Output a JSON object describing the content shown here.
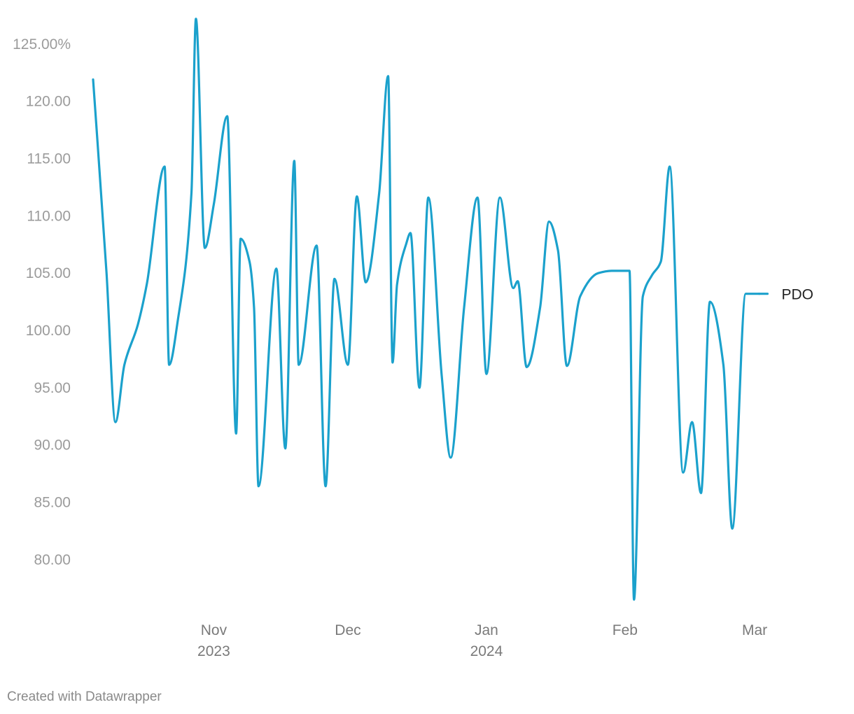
{
  "chart_data": {
    "type": "line",
    "title": "",
    "xlabel": "",
    "ylabel": "",
    "ylim": [
      75.5,
      127.5
    ],
    "xlim": [
      "2023-10-05",
      "2024-03-06"
    ],
    "grid": false,
    "legend": "inline-right",
    "y_ticks": [
      {
        "value": 125,
        "label": "125.00%"
      },
      {
        "value": 120,
        "label": "120.00"
      },
      {
        "value": 115,
        "label": "115.00"
      },
      {
        "value": 110,
        "label": "110.00"
      },
      {
        "value": 105,
        "label": "105.00"
      },
      {
        "value": 100,
        "label": "100.00"
      },
      {
        "value": 95,
        "label": "95.00"
      },
      {
        "value": 90,
        "label": "90.00"
      },
      {
        "value": 85,
        "label": "85.00"
      },
      {
        "value": 80,
        "label": "80.00"
      }
    ],
    "x_ticks": [
      {
        "date": "2023-11-01",
        "label": "Nov",
        "sublabel": "2023"
      },
      {
        "date": "2023-12-01",
        "label": "Dec",
        "sublabel": ""
      },
      {
        "date": "2024-01-01",
        "label": "Jan",
        "sublabel": "2024"
      },
      {
        "date": "2024-02-01",
        "label": "Feb",
        "sublabel": ""
      },
      {
        "date": "2024-03-01",
        "label": "Mar",
        "sublabel": ""
      }
    ],
    "series": [
      {
        "name": "PDO",
        "color": "#1ba1cc",
        "points": [
          [
            "2023-10-05",
            121.9
          ],
          [
            "2023-10-08",
            105.0
          ],
          [
            "2023-10-10",
            92.0
          ],
          [
            "2023-10-12",
            97.0
          ],
          [
            "2023-10-15",
            100.5
          ],
          [
            "2023-10-17",
            104.0
          ],
          [
            "2023-10-21",
            114.3
          ],
          [
            "2023-10-22",
            97.0
          ],
          [
            "2023-10-24",
            101.0
          ],
          [
            "2023-10-27",
            112.0
          ],
          [
            "2023-10-28",
            127.2
          ],
          [
            "2023-10-30",
            107.2
          ],
          [
            "2023-11-01",
            111.0
          ],
          [
            "2023-11-04",
            118.7
          ],
          [
            "2023-11-06",
            91.0
          ],
          [
            "2023-11-07",
            108.0
          ],
          [
            "2023-11-09",
            106.0
          ],
          [
            "2023-11-10",
            102.0
          ],
          [
            "2023-11-11",
            86.4
          ],
          [
            "2023-11-15",
            105.4
          ],
          [
            "2023-11-17",
            89.7
          ],
          [
            "2023-11-19",
            114.8
          ],
          [
            "2023-11-20",
            97.0
          ],
          [
            "2023-11-24",
            107.4
          ],
          [
            "2023-11-26",
            86.4
          ],
          [
            "2023-11-28",
            104.5
          ],
          [
            "2023-12-01",
            97.0
          ],
          [
            "2023-12-03",
            111.7
          ],
          [
            "2023-12-05",
            104.2
          ],
          [
            "2023-12-08",
            112.0
          ],
          [
            "2023-12-10",
            122.2
          ],
          [
            "2023-12-11",
            97.2
          ],
          [
            "2023-12-12",
            104.0
          ],
          [
            "2023-12-14",
            107.5
          ],
          [
            "2023-12-15",
            108.5
          ],
          [
            "2023-12-17",
            95.0
          ],
          [
            "2023-12-19",
            111.6
          ],
          [
            "2023-12-22",
            96.0
          ],
          [
            "2023-12-24",
            88.9
          ],
          [
            "2023-12-27",
            102.0
          ],
          [
            "2023-12-30",
            111.6
          ],
          [
            "2024-01-01",
            96.2
          ],
          [
            "2024-01-04",
            111.6
          ],
          [
            "2024-01-07",
            103.7
          ],
          [
            "2024-01-08",
            104.3
          ],
          [
            "2024-01-10",
            96.8
          ],
          [
            "2024-01-13",
            102.0
          ],
          [
            "2024-01-15",
            109.5
          ],
          [
            "2024-01-17",
            107.0
          ],
          [
            "2024-01-19",
            96.9
          ],
          [
            "2024-01-22",
            103.0
          ],
          [
            "2024-01-26",
            105.0
          ],
          [
            "2024-01-29",
            105.2
          ],
          [
            "2024-02-02",
            105.2
          ],
          [
            "2024-02-03",
            76.5
          ],
          [
            "2024-02-05",
            103.0
          ],
          [
            "2024-02-07",
            104.8
          ],
          [
            "2024-02-09",
            106.0
          ],
          [
            "2024-02-11",
            114.3
          ],
          [
            "2024-02-14",
            87.6
          ],
          [
            "2024-02-16",
            92.0
          ],
          [
            "2024-02-18",
            85.8
          ],
          [
            "2024-02-20",
            102.5
          ],
          [
            "2024-02-23",
            97.0
          ],
          [
            "2024-02-25",
            82.7
          ],
          [
            "2024-02-28",
            103.2
          ],
          [
            "2024-03-02",
            103.2
          ]
        ]
      }
    ]
  },
  "footer": {
    "credit": "Created with Datawrapper"
  }
}
